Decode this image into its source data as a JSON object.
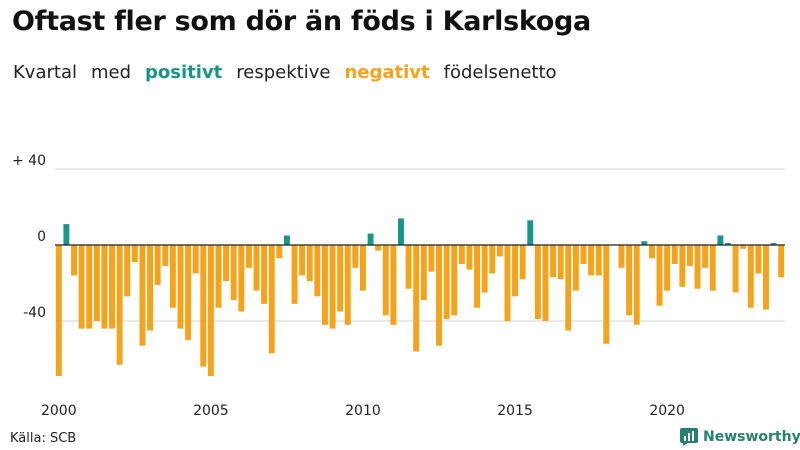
{
  "title": "Oftast fler som dör än föds i Karlskoga",
  "subtitle": {
    "part1": "Kvartal",
    "part2": "med",
    "positive": "positivt",
    "part3": "respektive",
    "negative": "negativt",
    "part4": "födelsenetto"
  },
  "source": "Källa: SCB",
  "brand": "Newsworthy",
  "colors": {
    "positive": "#1a9688",
    "negative": "#f5a31a",
    "brand": "#26806f"
  },
  "chart_data": {
    "type": "bar",
    "ylim": [
      -80,
      40
    ],
    "ytick_values": [
      40,
      0,
      -40
    ],
    "ytick_labels": [
      "+ 40",
      "0",
      "-40"
    ],
    "xtick_labels": [
      "2000",
      "2005",
      "2010",
      "2015",
      "2020"
    ],
    "categories": [
      "2000 Q1",
      "2000 Q2",
      "2000 Q3",
      "2000 Q4",
      "2001 Q1",
      "2001 Q2",
      "2001 Q3",
      "2001 Q4",
      "2002 Q1",
      "2002 Q2",
      "2002 Q3",
      "2002 Q4",
      "2003 Q1",
      "2003 Q2",
      "2003 Q3",
      "2003 Q4",
      "2004 Q1",
      "2004 Q2",
      "2004 Q3",
      "2004 Q4",
      "2005 Q1",
      "2005 Q2",
      "2005 Q3",
      "2005 Q4",
      "2006 Q1",
      "2006 Q2",
      "2006 Q3",
      "2006 Q4",
      "2007 Q1",
      "2007 Q2",
      "2007 Q3",
      "2007 Q4",
      "2008 Q1",
      "2008 Q2",
      "2008 Q3",
      "2008 Q4",
      "2009 Q1",
      "2009 Q2",
      "2009 Q3",
      "2009 Q4",
      "2010 Q1",
      "2010 Q2",
      "2010 Q3",
      "2010 Q4",
      "2011 Q1",
      "2011 Q2",
      "2011 Q3",
      "2011 Q4",
      "2012 Q1",
      "2012 Q2",
      "2012 Q3",
      "2012 Q4",
      "2013 Q1",
      "2013 Q2",
      "2013 Q3",
      "2013 Q4",
      "2014 Q1",
      "2014 Q2",
      "2014 Q3",
      "2014 Q4",
      "2015 Q1",
      "2015 Q2",
      "2015 Q3",
      "2015 Q4",
      "2016 Q1",
      "2016 Q2",
      "2016 Q3",
      "2016 Q4",
      "2017 Q1",
      "2017 Q2",
      "2017 Q3",
      "2017 Q4",
      "2018 Q1",
      "2018 Q2",
      "2018 Q3",
      "2018 Q4",
      "2019 Q1",
      "2019 Q2",
      "2019 Q3",
      "2019 Q4",
      "2020 Q1",
      "2020 Q2",
      "2020 Q3",
      "2020 Q4",
      "2021 Q1",
      "2021 Q2",
      "2021 Q3",
      "2021 Q4",
      "2022 Q1",
      "2022 Q2",
      "2022 Q3",
      "2022 Q4",
      "2023 Q1",
      "2023 Q2",
      "2023 Q3",
      "2023 Q4"
    ],
    "values": [
      -69,
      11,
      -16,
      -44,
      -44,
      -40,
      -44,
      -44,
      -63,
      -27,
      -9,
      -53,
      -45,
      -21,
      -11,
      -33,
      -44,
      -50,
      -15,
      -64,
      -69,
      -33,
      -19,
      -29,
      -35,
      -12,
      -24,
      -31,
      -57,
      -7,
      5,
      -31,
      -16,
      -19,
      -27,
      -42,
      -44,
      -35,
      -42,
      -12,
      -24,
      6,
      -3,
      -37,
      -42,
      14,
      -23,
      -56,
      -29,
      -14,
      -53,
      -39,
      -37,
      -10,
      -13,
      -33,
      -25,
      -15,
      -6,
      -40,
      -27,
      -18,
      13,
      -39,
      -40,
      -17,
      -18,
      -45,
      -24,
      -10,
      -16,
      -16,
      -52,
      0,
      -12,
      -37,
      -42,
      2,
      -7,
      -32,
      -24,
      -10,
      -22,
      -11,
      -23,
      -12,
      -24,
      5,
      1,
      -25,
      -2,
      -33,
      -15,
      -34,
      1,
      -17
    ]
  }
}
